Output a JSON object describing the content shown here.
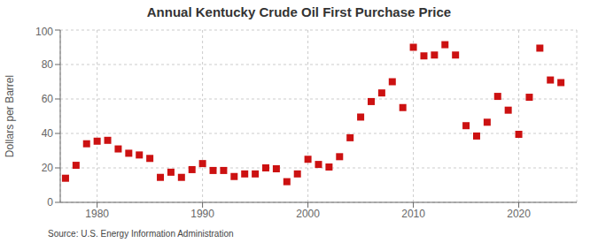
{
  "chart_data": {
    "type": "scatter",
    "title": "Annual Kentucky Crude Oil First Purchase Price",
    "ylabel": "Dollars per Barrel",
    "annotations": [
      "Source: U.S. Energy Information Administration"
    ],
    "color": "#cc1111",
    "marker": "square",
    "grid": true,
    "xlim": [
      1976.5,
      2025.5
    ],
    "xticks": [
      1980,
      1990,
      2000,
      2010,
      2020
    ],
    "ylim": [
      0,
      100
    ],
    "yticks": [
      0,
      20,
      40,
      60,
      80,
      100
    ],
    "x": [
      1977,
      1978,
      1979,
      1980,
      1981,
      1982,
      1983,
      1984,
      1985,
      1986,
      1987,
      1988,
      1989,
      1990,
      1991,
      1992,
      1993,
      1994,
      1995,
      1996,
      1997,
      1998,
      1999,
      2000,
      2001,
      2002,
      2003,
      2004,
      2005,
      2006,
      2007,
      2008,
      2009,
      2010,
      2011,
      2012,
      2013,
      2014,
      2015,
      2016,
      2017,
      2018,
      2019,
      2020,
      2021,
      2022,
      2023,
      2024
    ],
    "values": [
      14.0,
      21.5,
      34.0,
      35.5,
      36.0,
      31.0,
      28.5,
      27.5,
      25.5,
      14.5,
      17.5,
      14.5,
      19.0,
      22.5,
      18.5,
      18.5,
      15.0,
      16.5,
      16.5,
      20.0,
      19.5,
      12.0,
      16.5,
      25.0,
      22.0,
      20.5,
      26.5,
      37.5,
      49.5,
      58.5,
      63.5,
      70.0,
      55.0,
      90.0,
      85.0,
      85.5,
      91.5,
      85.5,
      44.5,
      38.5,
      46.5,
      61.5,
      53.5,
      39.5,
      61.0,
      89.5,
      71.0,
      69.5
    ]
  }
}
